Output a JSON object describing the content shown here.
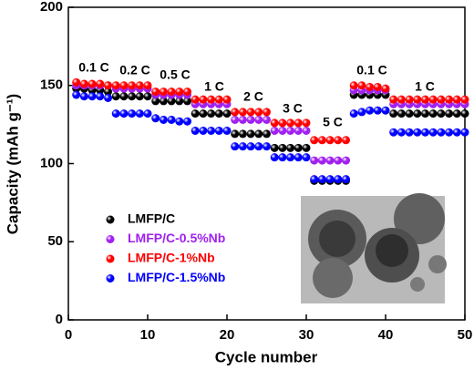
{
  "chart_data": {
    "type": "scatter",
    "xlabel": "Cycle number",
    "ylabel": "Capacity (mAh g⁻¹)",
    "xlim": [
      0,
      50
    ],
    "xticks": [
      0,
      10,
      20,
      30,
      40,
      50
    ],
    "ylim": [
      0,
      200
    ],
    "yticks": [
      0,
      50,
      100,
      150,
      200
    ],
    "annotations": [
      "0.1 C",
      "0.2 C",
      "0.5 C",
      "1 C",
      "2 C",
      "3 C",
      "5 C",
      "0.1 C",
      "1 C"
    ],
    "x": [
      1,
      2,
      3,
      4,
      5,
      6,
      7,
      8,
      9,
      10,
      11,
      12,
      13,
      14,
      15,
      16,
      17,
      18,
      19,
      20,
      21,
      22,
      23,
      24,
      25,
      26,
      27,
      28,
      29,
      30,
      31,
      32,
      33,
      34,
      35,
      36,
      37,
      38,
      39,
      40,
      41,
      42,
      43,
      44,
      45,
      46,
      47,
      48,
      49,
      50
    ],
    "series": [
      {
        "name": "LMFP/C",
        "color": "#000000",
        "values": [
          148,
          148,
          147,
          147,
          146,
          143,
          143,
          143,
          143,
          143,
          140,
          140,
          140,
          140,
          140,
          132,
          132,
          132,
          132,
          132,
          119,
          119,
          119,
          119,
          119,
          110,
          110,
          110,
          110,
          110,
          89,
          89,
          89,
          89,
          89,
          144,
          144,
          144,
          144,
          144,
          132,
          132,
          132,
          132,
          132,
          132,
          132,
          132,
          132,
          132
        ]
      },
      {
        "name": "LMFP/C-0.5%Nb",
        "color": "#a020f0",
        "values": [
          150,
          150,
          150,
          150,
          150,
          148,
          148,
          148,
          148,
          148,
          144,
          144,
          144,
          144,
          144,
          138,
          138,
          138,
          138,
          138,
          128,
          128,
          128,
          128,
          128,
          121,
          121,
          121,
          121,
          121,
          102,
          102,
          102,
          102,
          102,
          147,
          147,
          147,
          147,
          147,
          138,
          138,
          138,
          138,
          138,
          138,
          138,
          138,
          138,
          138
        ]
      },
      {
        "name": "LMFP/C-1%Nb",
        "color": "#ff0000",
        "values": [
          152,
          151,
          151,
          151,
          150,
          150,
          150,
          150,
          150,
          150,
          146,
          146,
          146,
          146,
          146,
          141,
          141,
          141,
          141,
          141,
          133,
          133,
          133,
          133,
          133,
          126,
          126,
          126,
          126,
          126,
          115,
          115,
          115,
          115,
          115,
          150,
          150,
          149,
          149,
          148,
          141,
          141,
          141,
          141,
          141,
          141,
          141,
          141,
          141,
          141
        ]
      },
      {
        "name": "LMFP/C-1.5%Nb",
        "color": "#0000ff",
        "values": [
          144,
          143,
          143,
          143,
          142,
          132,
          132,
          132,
          132,
          132,
          129,
          128,
          128,
          127,
          127,
          121,
          121,
          121,
          121,
          121,
          111,
          111,
          111,
          111,
          111,
          104,
          104,
          104,
          104,
          104,
          90,
          90,
          90,
          90,
          90,
          132,
          133,
          134,
          134,
          134,
          120,
          120,
          120,
          120,
          120,
          120,
          120,
          120,
          120,
          120
        ]
      }
    ]
  }
}
